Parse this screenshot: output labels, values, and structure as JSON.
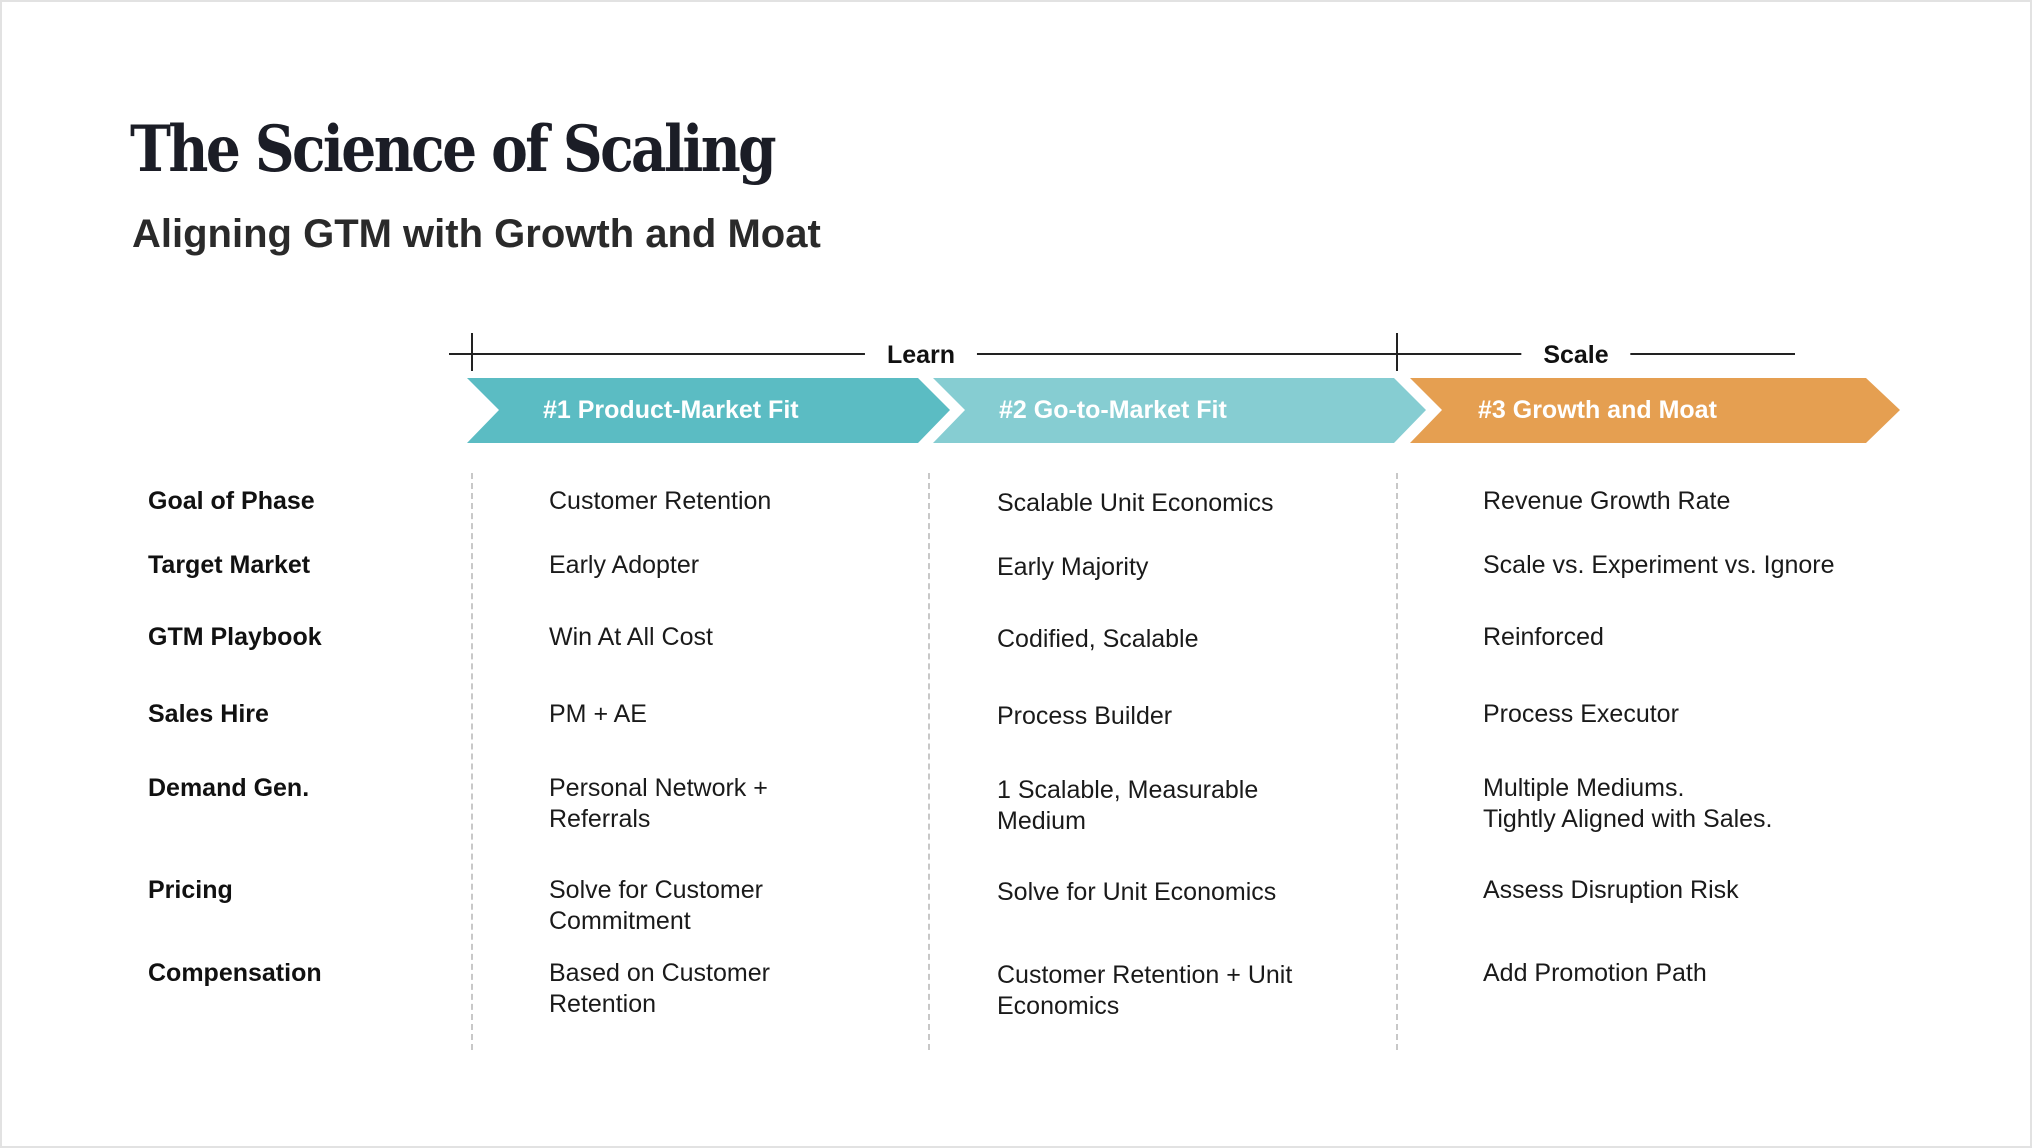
{
  "title": "The Science of Scaling",
  "subtitle": "Aligning GTM with Growth and Moat",
  "timeline": {
    "learn": "Learn",
    "scale": "Scale"
  },
  "phases": [
    {
      "label": "#1 Product-Market Fit",
      "color": "#5bbcc3"
    },
    {
      "label": "#2 Go-to-Market Fit",
      "color": "#86cdd2"
    },
    {
      "label": "#3 Growth and Moat",
      "color": "#e59f51"
    }
  ],
  "rows": [
    {
      "label": "Goal of Phase",
      "values": [
        "Customer Retention",
        "Scalable Unit Economics",
        "Revenue Growth Rate"
      ]
    },
    {
      "label": "Target Market",
      "values": [
        "Early Adopter",
        "Early Majority",
        "Scale vs. Experiment vs. Ignore"
      ]
    },
    {
      "label": "GTM Playbook",
      "values": [
        "Win At All Cost",
        "Codified, Scalable",
        "Reinforced"
      ]
    },
    {
      "label": "Sales Hire",
      "values": [
        "PM + AE",
        "Process Builder",
        "Process Executor"
      ]
    },
    {
      "label": "Demand Gen.",
      "values": [
        "Personal Network +\nReferrals",
        "1 Scalable, Measurable\nMedium",
        "Multiple Mediums.\nTightly Aligned with Sales."
      ]
    },
    {
      "label": "Pricing",
      "values": [
        "Solve for Customer\nCommitment",
        "Solve for Unit Economics",
        "Assess Disruption Risk"
      ]
    },
    {
      "label": "Compensation",
      "values": [
        "Based on Customer\nRetention",
        "Customer Retention + Unit\nEconomics",
        "Add Promotion Path"
      ]
    }
  ]
}
